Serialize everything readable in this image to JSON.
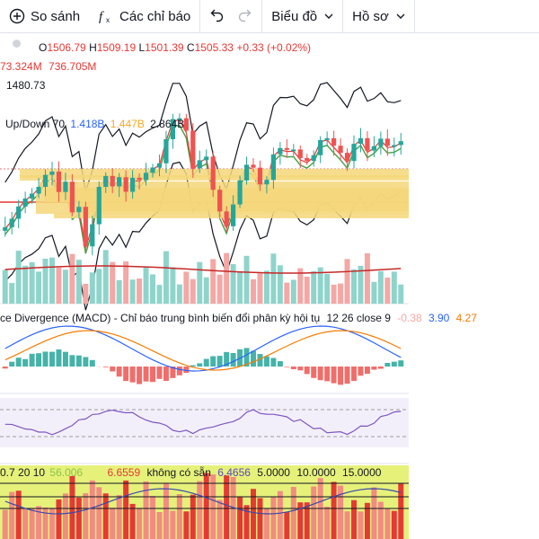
{
  "toolbar": {
    "compare_label": "So sánh",
    "indicators_label": "Các chỉ báo",
    "chart_type_label": "Biểu đồ",
    "profile_label": "Hồ sơ"
  },
  "ohlc": {
    "o_label": "O",
    "o_value": "1506.79",
    "h_label": "H",
    "h_value": "1509.19",
    "l_label": "L",
    "l_value": "1501.39",
    "c_label": "C",
    "c_value": "1505.33",
    "change": "+0.33 (+0.02%)"
  },
  "volume_legend": {
    "v1": "73.324M",
    "v2": "736.705M"
  },
  "ma_value": "1480.73",
  "updown": {
    "label": "Up/Down 70",
    "v1": "1.418B",
    "v2": "1.447B",
    "v3": "2.864B"
  },
  "macd": {
    "label": "ce Divergence (MACD) - Chỉ báo trung bình biến đổi phân kỳ hội tụ",
    "params": "12 26 close 9",
    "v1": "-0.38",
    "v2": "3.90",
    "v3": "4.27"
  },
  "bottom": {
    "label": "0.7 20 10",
    "v1": "56.006",
    "v2": "6.6559",
    "v3": "không có sẵn",
    "v4": "6.4656",
    "v5": "5.0000",
    "v6": "10.0000",
    "v7": "15.0000"
  },
  "colors": {
    "up": "#26a69a",
    "down": "#ef5350",
    "bb": "#131722",
    "ma_red": "#e53935",
    "ma_green": "#43a047",
    "macd_blue": "#2962ff",
    "macd_orange": "#f57c00",
    "rsi_purple": "#7e57c2",
    "vp_yellow": "#f5d77a"
  }
}
